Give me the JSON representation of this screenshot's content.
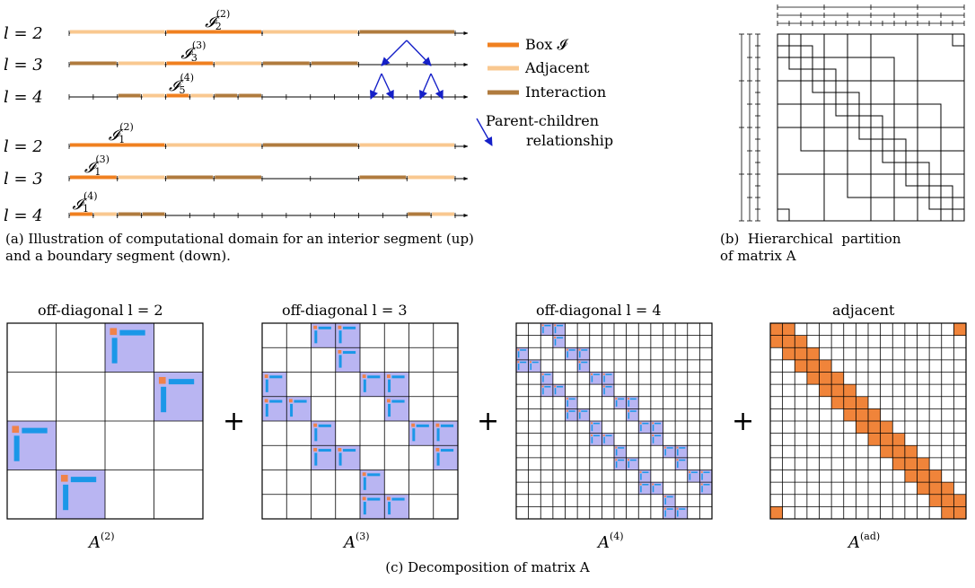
{
  "panel_a": {
    "rows": [
      {
        "label": "l = 2",
        "box": "𝓘",
        "box_sub": "2",
        "box_sup": "(2)"
      },
      {
        "label": "l = 3",
        "box": "𝓘",
        "box_sub": "3",
        "box_sup": "(3)"
      },
      {
        "label": "l = 4",
        "box": "𝓘",
        "box_sub": "5",
        "box_sup": "(4)"
      },
      {
        "label": "l = 2",
        "box": "𝓘",
        "box_sub": "1",
        "box_sup": "(2)"
      },
      {
        "label": "l = 3",
        "box": "𝓘",
        "box_sub": "1",
        "box_sup": "(3)"
      },
      {
        "label": "l = 4",
        "box": "𝓘",
        "box_sub": "1",
        "box_sup": "(4)"
      }
    ],
    "legend": {
      "box": "Box 𝓘",
      "adjacent": "Adjacent",
      "interaction": "Interaction",
      "parent_line1": "Parent-children",
      "parent_line2": "relationship"
    },
    "caption_line1": "(a) Illustration of computational domain for an interior segment (up)",
    "caption_line2": "and a boundary segment (down)."
  },
  "panel_b": {
    "caption_line1": "(b)  Hierarchical  partition",
    "caption_line2": "of matrix A"
  },
  "panel_c": {
    "titles": [
      "off-diagonal l = 2",
      "off-diagonal l = 3",
      "off-diagonal l = 4",
      "adjacent"
    ],
    "labels": [
      {
        "base": "A",
        "sup": "(2)"
      },
      {
        "base": "A",
        "sup": "(3)"
      },
      {
        "base": "A",
        "sup": "(4)"
      },
      {
        "base": "A",
        "sup": "(ad)"
      }
    ],
    "plus": "+",
    "caption": "(c) Decomposition of matrix A"
  },
  "colors": {
    "box": "#f08020",
    "adjacent": "#f9c890",
    "interaction": "#b07b3e",
    "arrow": "#1520c8",
    "lavender": "#b9b5f2",
    "blue": "#1a97e8",
    "orange_small": "#f0824a",
    "adjacent_fill": "#f0843a"
  }
}
